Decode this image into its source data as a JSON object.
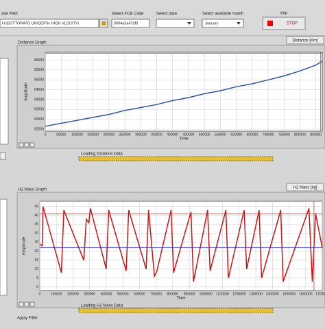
{
  "toolbar": {
    "path_label": "ase Path",
    "path_value": "H:\\DOTTORATO UNIGE\\File HIGH VLOCITY\\",
    "fcb_label": "Select FCB Code",
    "fcb_value": "0004a3a47df0",
    "date_label": "Select date",
    "month_label": "Select available month",
    "month_value": "January",
    "stop_label": "stop",
    "stop_button": "STOP"
  },
  "graphs": [
    {
      "title": "Distance Graph",
      "button": "Distance [Km]",
      "x_label": "Time",
      "y_label": "Amplitude",
      "xlim": [
        0,
        870000
      ],
      "ylim": [
        82400,
        86400
      ],
      "xticks": [
        0,
        50000,
        100000,
        150000,
        200000,
        250000,
        300000,
        350000,
        400000,
        450000,
        500000,
        550000,
        600000,
        650000,
        700000,
        750000,
        800000,
        850000
      ],
      "yticks": [
        82500,
        83000,
        83500,
        84000,
        84500,
        85000,
        85500,
        86000
      ],
      "series": {
        "color": "#2b55a8",
        "x": [
          0,
          50000,
          100000,
          150000,
          200000,
          250000,
          300000,
          350000,
          400000,
          450000,
          500000,
          550000,
          600000,
          650000,
          700000,
          750000,
          800000,
          850000,
          870000
        ],
        "y": [
          82650,
          82800,
          82950,
          83100,
          83250,
          83450,
          83600,
          83750,
          83950,
          84100,
          84300,
          84450,
          84650,
          84800,
          85000,
          85200,
          85450,
          85750,
          85950
        ]
      },
      "cursors": [
        {
          "axis": "x",
          "value": 865000,
          "color": "#e03030"
        },
        {
          "axis": "y",
          "value": 86350,
          "color": "#e03030"
        }
      ],
      "progress": "Loading Distance Data"
    },
    {
      "title": "H2 Mass Graph",
      "button": "H2 Mass [kg]",
      "x_label": "Time",
      "y_label": "Amplitude",
      "xlim": [
        0,
        1700000
      ],
      "ylim": [
        -2,
        48
      ],
      "xticks": [
        0,
        100000,
        200000,
        300000,
        400000,
        500000,
        600000,
        700000,
        800000,
        900000,
        1000000,
        1100000,
        1200000,
        1300000,
        1400000,
        1500000,
        1600000,
        1700000
      ],
      "yticks": [
        0,
        5,
        10,
        15,
        20,
        25,
        30,
        35,
        40,
        45
      ],
      "series": {
        "color": "#c01818",
        "x": [
          0,
          15000,
          20000,
          130000,
          145000,
          265000,
          280000,
          295000,
          305000,
          400000,
          415000,
          520000,
          535000,
          640000,
          655000,
          690000,
          705000,
          790000,
          805000,
          910000,
          925000,
          1010000,
          1025000,
          1120000,
          1135000,
          1230000,
          1245000,
          1320000,
          1335000,
          1450000,
          1465000,
          1620000,
          1640000,
          1660000,
          1700000
        ],
        "y": [
          24,
          23,
          45,
          8,
          43,
          15,
          38,
          36,
          44,
          10,
          43,
          9,
          43,
          10,
          43,
          6,
          9,
          43,
          8,
          42,
          3,
          43,
          9,
          43,
          5,
          43,
          10,
          43,
          5,
          43,
          3,
          44,
          3,
          41,
          22
        ]
      },
      "cursors": [
        {
          "axis": "x",
          "value": 1650000,
          "color": "#e03030"
        },
        {
          "axis": "y",
          "value": 41,
          "color": "#e03030"
        },
        {
          "axis": "y",
          "value": 22,
          "color": "#3030d0"
        }
      ],
      "progress": "Loading H2 Mass Data"
    }
  ],
  "footer": {
    "apply_filter": "Apply Filter"
  }
}
